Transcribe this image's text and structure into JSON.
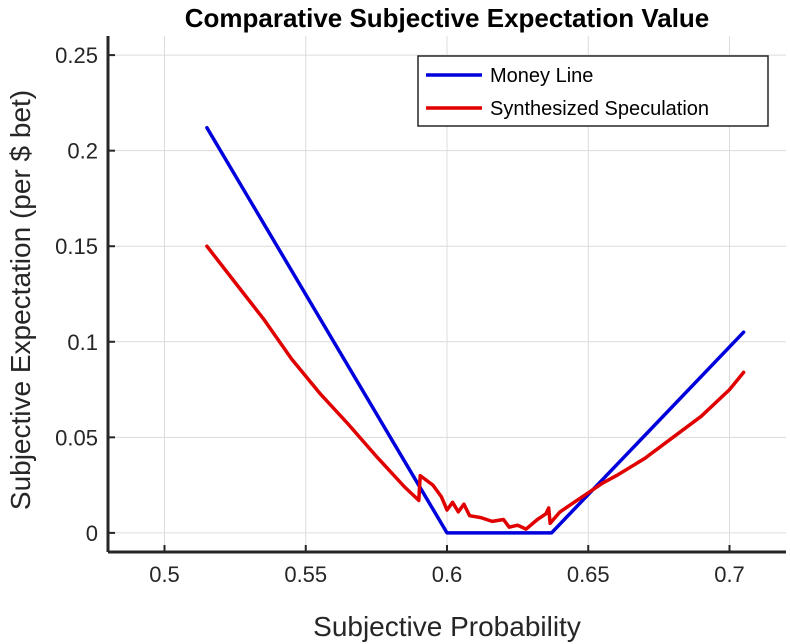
{
  "chart_data": {
    "type": "line",
    "title": "Comparative Subjective Expectation Value",
    "xlabel": "Subjective Probability",
    "ylabel": "Subjective Expectation (per $ bet)",
    "xlim": [
      0.48,
      0.72
    ],
    "ylim": [
      -0.01,
      0.26
    ],
    "xticks": [
      0.5,
      0.55,
      0.6,
      0.65,
      0.7
    ],
    "yticks": [
      0,
      0.05,
      0.1,
      0.15,
      0.2,
      0.25
    ],
    "xtick_labels": [
      "0.5",
      "0.55",
      "0.6",
      "0.65",
      "0.7"
    ],
    "ytick_labels": [
      "0",
      "0.05",
      "0.1",
      "0.15",
      "0.2",
      "0.25"
    ],
    "grid": true,
    "legend_position": "top-right",
    "series": [
      {
        "name": "Money Line",
        "color": "#0000dd",
        "x": [
          0.515,
          0.6,
          0.637,
          0.705
        ],
        "y": [
          0.212,
          0.0,
          0.0,
          0.105
        ]
      },
      {
        "name": "Synthesized Speculation",
        "color": "#e00000",
        "x": [
          0.515,
          0.525,
          0.535,
          0.545,
          0.555,
          0.565,
          0.575,
          0.585,
          0.59,
          0.5905,
          0.595,
          0.598,
          0.6,
          0.602,
          0.604,
          0.606,
          0.608,
          0.612,
          0.616,
          0.62,
          0.622,
          0.625,
          0.628,
          0.632,
          0.635,
          0.636,
          0.6365,
          0.64,
          0.645,
          0.65,
          0.655,
          0.66,
          0.67,
          0.68,
          0.69,
          0.7,
          0.705
        ],
        "y": [
          0.15,
          0.131,
          0.112,
          0.091,
          0.073,
          0.057,
          0.04,
          0.024,
          0.017,
          0.03,
          0.025,
          0.019,
          0.012,
          0.016,
          0.011,
          0.015,
          0.009,
          0.008,
          0.006,
          0.007,
          0.003,
          0.004,
          0.002,
          0.007,
          0.01,
          0.013,
          0.005,
          0.011,
          0.016,
          0.021,
          0.026,
          0.03,
          0.039,
          0.05,
          0.061,
          0.075,
          0.084
        ]
      }
    ]
  }
}
